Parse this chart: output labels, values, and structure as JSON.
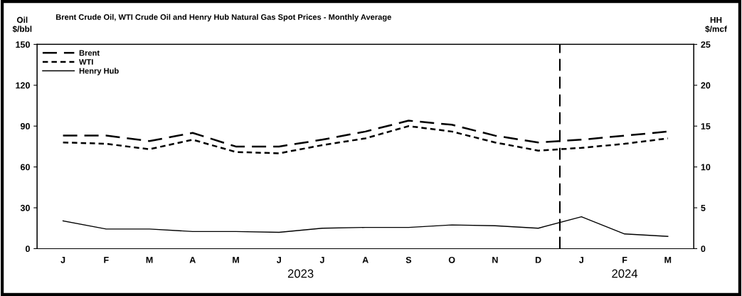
{
  "chart_data": {
    "type": "line",
    "title": "Brent Crude Oil, WTI Crude Oil and Henry Hub Natural Gas Spot Prices - Monthly Average",
    "ylabel": "Oil\n$/bbl",
    "y2label": "HH\n$/mcf",
    "categories": [
      "J",
      "F",
      "M",
      "A",
      "M",
      "J",
      "J",
      "A",
      "S",
      "O",
      "N",
      "D",
      "J",
      "F",
      "M"
    ],
    "series": [
      {
        "name": "Brent",
        "color": "#000000",
        "line_style": "dashed",
        "values": [
          83,
          83,
          79,
          85,
          75,
          75,
          80,
          86,
          94,
          91,
          83,
          78,
          80,
          83,
          86
        ]
      },
      {
        "name": "WTI",
        "color": "#000000",
        "line_style": "dotted",
        "values": [
          78,
          77,
          73,
          80,
          71,
          70,
          76,
          81,
          90,
          86,
          78,
          72,
          74,
          77,
          81
        ]
      },
      {
        "name": "Henry Hub",
        "color": "#000000",
        "line_style": "solid",
        "axis": "y2",
        "values": [
          3.4,
          2.4,
          2.4,
          2.1,
          2.1,
          2.0,
          2.5,
          2.6,
          2.6,
          2.9,
          2.8,
          2.5,
          3.9,
          1.8,
          1.5
        ]
      }
    ],
    "ylim": [
      0,
      150
    ],
    "yticks": [
      0,
      30,
      60,
      90,
      120,
      150
    ],
    "y2lim": [
      0,
      25
    ],
    "y2ticks": [
      0,
      5,
      10,
      15,
      20,
      25
    ],
    "annotations": [
      "2023",
      "2024"
    ],
    "legend": "top left",
    "grid": false,
    "marker": "none"
  }
}
